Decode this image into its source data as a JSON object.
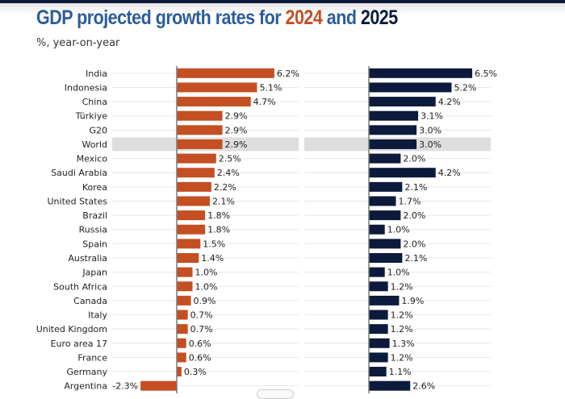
{
  "header": {
    "title_prefix": "GDP projected growth rates for ",
    "title_year1": "2024",
    "title_mid": " and ",
    "title_year2": "2025",
    "subtitle": "%, year-on-year"
  },
  "colors": {
    "title": "#2b5d99",
    "series_2024": "#c44f22",
    "series_2025": "#0c1a3c",
    "highlight_row": "#dedede"
  },
  "chart_data": {
    "type": "bar",
    "orientation": "horizontal",
    "title": "GDP projected growth rates for 2024 and 2025",
    "subtitle": "%, year-on-year",
    "value_suffix": "%",
    "highlighted_category": "World",
    "categories": [
      "India",
      "Indonesia",
      "China",
      "Türkiye",
      "G20",
      "World",
      "Mexico",
      "Saudi Arabia",
      "Korea",
      "United States",
      "Brazil",
      "Russia",
      "Spain",
      "Australia",
      "Japan",
      "South Africa",
      "Canada",
      "Italy",
      "United Kingdom",
      "Euro area 17",
      "France",
      "Germany",
      "Argentina"
    ],
    "series": [
      {
        "name": "2024",
        "color": "#c44f22",
        "values": [
          6.2,
          5.1,
          4.7,
          2.9,
          2.9,
          2.9,
          2.5,
          2.4,
          2.2,
          2.1,
          1.8,
          1.8,
          1.5,
          1.4,
          1.0,
          1.0,
          0.9,
          0.7,
          0.7,
          0.6,
          0.6,
          0.3,
          -2.3
        ]
      },
      {
        "name": "2025",
        "color": "#0c1a3c",
        "values": [
          6.5,
          5.2,
          4.2,
          3.1,
          3.0,
          3.0,
          2.0,
          4.2,
          2.1,
          1.7,
          2.0,
          1.0,
          2.0,
          2.1,
          1.0,
          1.2,
          1.9,
          1.2,
          1.2,
          1.3,
          1.2,
          1.1,
          2.6
        ]
      }
    ],
    "xlabel": "",
    "ylabel": "",
    "grid": true
  }
}
